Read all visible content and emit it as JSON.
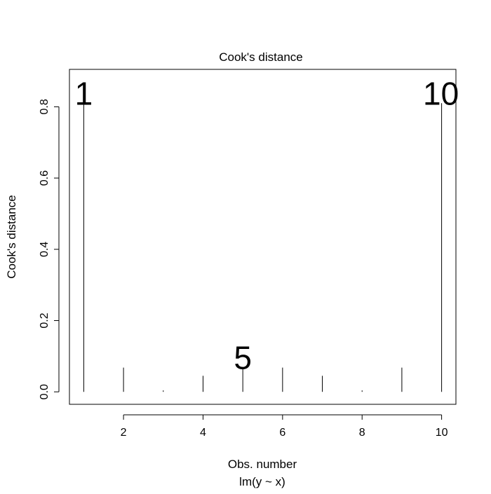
{
  "chart_data": {
    "type": "bar",
    "title": "Cook's distance",
    "xlabel": "Obs. number",
    "ylabel": "Cook's distance",
    "subtitle": "lm(y ~ x)",
    "x": [
      1,
      2,
      3,
      4,
      5,
      6,
      7,
      8,
      9,
      10
    ],
    "values": [
      0.81,
      0.068,
      0.004,
      0.045,
      0.068,
      0.068,
      0.045,
      0.004,
      0.068,
      0.81
    ],
    "xlim": [
      0.64,
      10.36
    ],
    "ylim": [
      -0.035,
      0.905
    ],
    "xticks": [
      2,
      4,
      6,
      8,
      10
    ],
    "xtick_labels": [
      "2",
      "4",
      "6",
      "8",
      "10"
    ],
    "yticks": [
      0.0,
      0.2,
      0.4,
      0.6,
      0.8
    ],
    "ytick_labels": [
      "0.0",
      "0.2",
      "0.4",
      "0.6",
      "0.8"
    ],
    "point_labels": [
      {
        "x": 1,
        "text": "1"
      },
      {
        "x": 5,
        "text": "5"
      },
      {
        "x": 10,
        "text": "10"
      }
    ],
    "grid": false,
    "legend": "none"
  }
}
